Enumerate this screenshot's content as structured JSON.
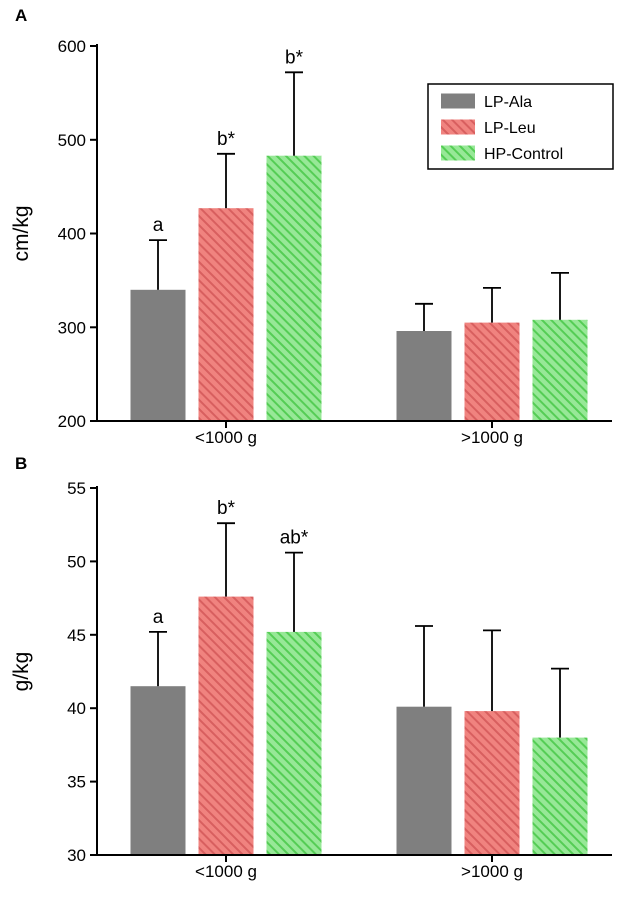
{
  "figure": {
    "panels": [
      {
        "label": "A"
      },
      {
        "label": "B"
      }
    ]
  },
  "legend": {
    "items": [
      "LP-Ala",
      "LP-Leu",
      "HP-Control"
    ]
  },
  "colors": {
    "lp_ala": "#7f7f7f",
    "lp_leu": "#f0837f",
    "lp_leu_hatch": "#d85f5f",
    "hp_control": "#97e897",
    "hp_control_hatch": "#55cd55",
    "axis": "#000000"
  },
  "chart_data": [
    {
      "type": "bar",
      "panel": "A",
      "title": "",
      "xlabel": "",
      "ylabel": "cm/kg",
      "ylim": [
        200,
        600
      ],
      "yticks": [
        200,
        300,
        400,
        500,
        600
      ],
      "categories": [
        "<1000 g",
        ">1000 g"
      ],
      "grid": false,
      "legend": {
        "visible": true,
        "position": "top-right"
      },
      "series": [
        {
          "name": "LP-Ala",
          "color": "#7f7f7f",
          "hatch": false,
          "hatch_color": "",
          "values": [
            340,
            296
          ],
          "error_plus": [
            53,
            29
          ],
          "labels": [
            "a",
            ""
          ]
        },
        {
          "name": "LP-Leu",
          "color": "#f0837f",
          "hatch": true,
          "hatch_color": "#d85f5f",
          "values": [
            427,
            305
          ],
          "error_plus": [
            58,
            37
          ],
          "labels": [
            "b*",
            ""
          ]
        },
        {
          "name": "HP-Control",
          "color": "#97e897",
          "hatch": true,
          "hatch_color": "#55cd55",
          "values": [
            483,
            308
          ],
          "error_plus": [
            89,
            50
          ],
          "labels": [
            "b*",
            ""
          ]
        }
      ]
    },
    {
      "type": "bar",
      "panel": "B",
      "title": "",
      "xlabel": "",
      "ylabel": "g/kg",
      "ylim": [
        30,
        55
      ],
      "yticks": [
        30,
        35,
        40,
        45,
        50,
        55
      ],
      "categories": [
        "<1000 g",
        ">1000 g"
      ],
      "grid": false,
      "legend": {
        "visible": false,
        "position": ""
      },
      "series": [
        {
          "name": "LP-Ala",
          "color": "#7f7f7f",
          "hatch": false,
          "hatch_color": "",
          "values": [
            41.5,
            40.1
          ],
          "error_plus": [
            3.7,
            5.5
          ],
          "labels": [
            "a",
            ""
          ]
        },
        {
          "name": "LP-Leu",
          "color": "#f0837f",
          "hatch": true,
          "hatch_color": "#d85f5f",
          "values": [
            47.6,
            39.8
          ],
          "error_plus": [
            5.0,
            5.5
          ],
          "labels": [
            "b*",
            ""
          ]
        },
        {
          "name": "HP-Control",
          "color": "#97e897",
          "hatch": true,
          "hatch_color": "#55cd55",
          "values": [
            45.2,
            38.0
          ],
          "error_plus": [
            5.4,
            4.7
          ],
          "labels": [
            "ab*",
            ""
          ]
        }
      ]
    }
  ]
}
